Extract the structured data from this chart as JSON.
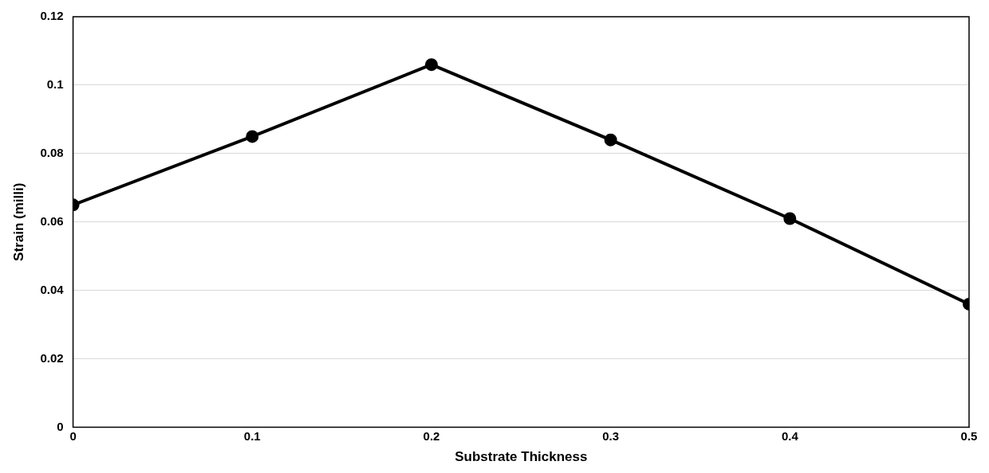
{
  "chart_data": {
    "type": "line",
    "xlabel": "Substrate Thickness",
    "ylabel": "Strain (milli)",
    "x": [
      0,
      0.1,
      0.2,
      0.3,
      0.4,
      0.5
    ],
    "series": [
      {
        "color": "#000000",
        "values": [
          0.065,
          0.085,
          0.106,
          0.084,
          0.061,
          0.036
        ]
      }
    ],
    "xlim": [
      0,
      0.5
    ],
    "xticks": [
      0,
      0.1,
      0.2,
      0.3,
      0.4,
      0.5
    ],
    "ylim": [
      0,
      0.12
    ],
    "yticks": [
      0,
      0.02,
      0.04,
      0.06,
      0.08,
      0.1,
      0.12
    ],
    "grid": "y",
    "marker": "circle",
    "line_style": "solid",
    "legend": false
  }
}
